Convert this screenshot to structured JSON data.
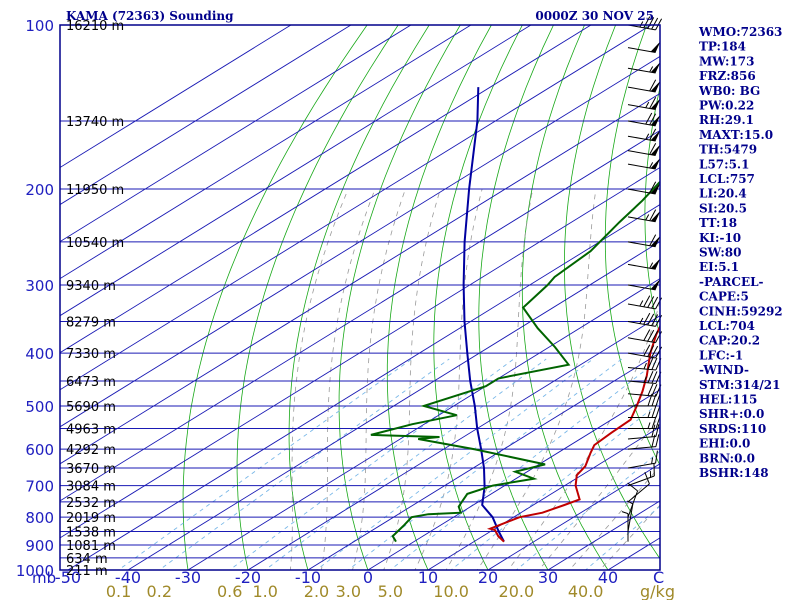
{
  "header": {
    "station": "KAMA (72363) Sounding",
    "time": "0000Z 30 NOV 25"
  },
  "indices": [
    "WMO:72363",
    "TP:184",
    "MW:173",
    "FRZ:856",
    "WB0: BG",
    "PW:0.22",
    "RH:29.1",
    "MAXT:15.0",
    "TH:5479",
    "L57:5.1",
    "LCL:757",
    "LI:20.4",
    "SI:20.5",
    "TT:18",
    "KI:-10",
    "SW:80",
    "EI:5.1",
    "-PARCEL-",
    "CAPE:5",
    "CINH:59292",
    "LCL:704",
    "CAP:20.2",
    "LFC:-1",
    "-WIND-",
    "STM:314/21",
    "HEL:115",
    "SHR+:0.0",
    "SRDS:110",
    "EHI:0.0",
    "BRN:0.0",
    "BSHR:148"
  ],
  "colors": {
    "frame": "#00008b",
    "isobar": "#1a1ab4",
    "isotherm": "#1a1ab4",
    "dry_adiabat": "#18a818",
    "moist_adiabat": "#9a9a9a",
    "mixing_ratio": "#7ab8e8",
    "temperature": "#c00000",
    "dewpoint": "#006400",
    "parcel": "#0000a0",
    "wind": "#000000"
  },
  "chart_data": {
    "type": "skew-t",
    "axis_labels": {
      "pressure_unit": "mb",
      "mixing_ratio_unit": "g/kg",
      "temperature_unit": "C"
    },
    "pressure_axis": {
      "scale": "log",
      "range_mb": [
        100,
        1000
      ],
      "ticks_mb": [
        100,
        200,
        300,
        400,
        500,
        600,
        700,
        800,
        900,
        1000
      ]
    },
    "temperature_axis": {
      "range_c": [
        -50,
        50
      ],
      "ticks_c": [
        -50,
        -40,
        -30,
        -20,
        -10,
        0,
        10,
        20,
        30,
        40
      ],
      "tick_labels": [
        "-50",
        "-40",
        "-30",
        "-20",
        "-10",
        "0",
        "10",
        "20",
        "30",
        "40"
      ]
    },
    "mixing_ratio_labels": [
      "0.1",
      "0.2",
      "0.6",
      "1.0",
      "2.0",
      "3.0",
      "5.0",
      "10.0",
      "20.0",
      "40.0"
    ],
    "height_levels": [
      {
        "p": 100,
        "label": "16210 m"
      },
      {
        "p": 150,
        "label": "13740 m"
      },
      {
        "p": 200,
        "label": "11950 m"
      },
      {
        "p": 250,
        "label": "10540 m"
      },
      {
        "p": 300,
        "label": "9340 m"
      },
      {
        "p": 350,
        "label": "8279 m"
      },
      {
        "p": 400,
        "label": "7330 m"
      },
      {
        "p": 450,
        "label": "6473 m"
      },
      {
        "p": 500,
        "label": "5690 m"
      },
      {
        "p": 550,
        "label": "4963 m"
      },
      {
        "p": 600,
        "label": "4292 m"
      },
      {
        "p": 650,
        "label": "3670 m"
      },
      {
        "p": 700,
        "label": "3084 m"
      },
      {
        "p": 750,
        "label": "2532 m"
      },
      {
        "p": 800,
        "label": "2019 m"
      },
      {
        "p": 850,
        "label": "1538 m"
      },
      {
        "p": 900,
        "label": "1081 m"
      },
      {
        "p": 950,
        "label": "634 m"
      },
      {
        "p": 1000,
        "label": "211 m"
      }
    ],
    "temperature_profile": [
      {
        "p": 887,
        "t": 15.0
      },
      {
        "p": 867,
        "t": 12.6
      },
      {
        "p": 845,
        "t": 10.4
      },
      {
        "p": 840,
        "t": 9.2
      },
      {
        "p": 800,
        "t": 11.0
      },
      {
        "p": 785,
        "t": 13.6
      },
      {
        "p": 760,
        "t": 15.2
      },
      {
        "p": 742,
        "t": 16.2
      },
      {
        "p": 700,
        "t": 11.8
      },
      {
        "p": 670,
        "t": 9.2
      },
      {
        "p": 645,
        "t": 8.2
      },
      {
        "p": 610,
        "t": 5.5
      },
      {
        "p": 590,
        "t": 4.0
      },
      {
        "p": 560,
        "t": 3.5
      },
      {
        "p": 530,
        "t": 3.2
      },
      {
        "p": 500,
        "t": 0.5
      },
      {
        "p": 470,
        "t": -2.5
      },
      {
        "p": 440,
        "t": -6.0
      },
      {
        "p": 400,
        "t": -11.5
      },
      {
        "p": 370,
        "t": -15.5
      },
      {
        "p": 350,
        "t": -18.0
      },
      {
        "p": 320,
        "t": -22.5
      },
      {
        "p": 300,
        "t": -26.5
      },
      {
        "p": 270,
        "t": -32.5
      },
      {
        "p": 250,
        "t": -38.0
      },
      {
        "p": 225,
        "t": -42.0
      },
      {
        "p": 212,
        "t": -41.5
      },
      {
        "p": 200,
        "t": -39.5
      },
      {
        "p": 184,
        "t": -40.0
      },
      {
        "p": 177,
        "t": -37.0
      },
      {
        "p": 168,
        "t": -37.5
      },
      {
        "p": 158,
        "t": -36.0
      },
      {
        "p": 148,
        "t": -35.5
      },
      {
        "p": 135,
        "t": -33.5
      },
      {
        "p": 120,
        "t": -30.5
      },
      {
        "p": 110,
        "t": -26.5
      },
      {
        "p": 104,
        "t": -26.0
      },
      {
        "p": 100,
        "t": -24.0
      }
    ],
    "dewpoint_profile": [
      {
        "p": 887,
        "td": -3.0
      },
      {
        "p": 867,
        "td": -5.0
      },
      {
        "p": 830,
        "td": -6.0
      },
      {
        "p": 800,
        "td": -7.0
      },
      {
        "p": 790,
        "td": -5.0
      },
      {
        "p": 785,
        "td": 0.0
      },
      {
        "p": 765,
        "td": -2.0
      },
      {
        "p": 745,
        "td": -3.0
      },
      {
        "p": 725,
        "td": -4.0
      },
      {
        "p": 700,
        "td": -2.0
      },
      {
        "p": 680,
        "td": 3.0
      },
      {
        "p": 660,
        "td": -2.0
      },
      {
        "p": 640,
        "td": 1.0
      },
      {
        "p": 600,
        "td": -15.0
      },
      {
        "p": 575,
        "td": -27.0
      },
      {
        "p": 570,
        "td": -24.0
      },
      {
        "p": 565,
        "td": -36.0
      },
      {
        "p": 540,
        "td": -32.0
      },
      {
        "p": 520,
        "td": -27.0
      },
      {
        "p": 500,
        "td": -35.0
      },
      {
        "p": 460,
        "td": -30.0
      },
      {
        "p": 445,
        "td": -30.0
      },
      {
        "p": 420,
        "td": -22.0
      },
      {
        "p": 390,
        "td": -29.0
      },
      {
        "p": 360,
        "td": -37.0
      },
      {
        "p": 330,
        "td": -45.0
      },
      {
        "p": 300,
        "td": -47.0
      },
      {
        "p": 290,
        "td": -48.0
      },
      {
        "p": 260,
        "td": -49.0
      },
      {
        "p": 230,
        "td": -52.0
      },
      {
        "p": 210,
        "td": -54.0
      },
      {
        "p": 195,
        "td": -56.0
      },
      {
        "p": 180,
        "td": -58.0
      },
      {
        "p": 160,
        "td": -62.0
      },
      {
        "p": 145,
        "td": -66.0
      },
      {
        "p": 120,
        "td": -70.0
      },
      {
        "p": 105,
        "td": -74.0
      },
      {
        "p": 100,
        "td": -76.0
      }
    ],
    "parcel_profile": [
      {
        "p": 887,
        "t": 15.0
      },
      {
        "p": 850,
        "t": 11.4
      },
      {
        "p": 800,
        "t": 6.5
      },
      {
        "p": 760,
        "t": 1.5
      },
      {
        "p": 704,
        "t": -3.0
      },
      {
        "p": 650,
        "t": -8.2
      },
      {
        "p": 600,
        "t": -13.8
      },
      {
        "p": 550,
        "t": -20.0
      },
      {
        "p": 500,
        "t": -26.5
      },
      {
        "p": 450,
        "t": -34.0
      },
      {
        "p": 400,
        "t": -42.0
      },
      {
        "p": 350,
        "t": -51.0
      },
      {
        "p": 300,
        "t": -61.0
      },
      {
        "p": 250,
        "t": -72.5
      },
      {
        "p": 200,
        "t": -86.0
      },
      {
        "p": 150,
        "t": -103.0
      },
      {
        "p": 130,
        "t": -112.0
      }
    ],
    "wind_profile": [
      {
        "p": 100,
        "dir": 280,
        "spd": 45
      },
      {
        "p": 110,
        "dir": 280,
        "spd": 50
      },
      {
        "p": 120,
        "dir": 280,
        "spd": 55
      },
      {
        "p": 130,
        "dir": 280,
        "spd": 60
      },
      {
        "p": 140,
        "dir": 280,
        "spd": 65
      },
      {
        "p": 150,
        "dir": 280,
        "spd": 70
      },
      {
        "p": 160,
        "dir": 280,
        "spd": 65
      },
      {
        "p": 170,
        "dir": 280,
        "spd": 60
      },
      {
        "p": 180,
        "dir": 280,
        "spd": 55
      },
      {
        "p": 200,
        "dir": 280,
        "spd": 60
      },
      {
        "p": 225,
        "dir": 280,
        "spd": 65
      },
      {
        "p": 250,
        "dir": 280,
        "spd": 60
      },
      {
        "p": 275,
        "dir": 280,
        "spd": 55
      },
      {
        "p": 300,
        "dir": 280,
        "spd": 50
      },
      {
        "p": 325,
        "dir": 280,
        "spd": 45
      },
      {
        "p": 350,
        "dir": 280,
        "spd": 45
      },
      {
        "p": 375,
        "dir": 280,
        "spd": 40
      },
      {
        "p": 400,
        "dir": 280,
        "spd": 40
      },
      {
        "p": 425,
        "dir": 275,
        "spd": 35
      },
      {
        "p": 450,
        "dir": 275,
        "spd": 35
      },
      {
        "p": 475,
        "dir": 275,
        "spd": 30
      },
      {
        "p": 500,
        "dir": 270,
        "spd": 30
      },
      {
        "p": 525,
        "dir": 270,
        "spd": 25
      },
      {
        "p": 550,
        "dir": 270,
        "spd": 25
      },
      {
        "p": 575,
        "dir": 265,
        "spd": 20
      },
      {
        "p": 600,
        "dir": 265,
        "spd": 20
      },
      {
        "p": 650,
        "dir": 260,
        "spd": 15
      },
      {
        "p": 700,
        "dir": 250,
        "spd": 15
      },
      {
        "p": 750,
        "dir": 230,
        "spd": 10
      },
      {
        "p": 800,
        "dir": 200,
        "spd": 10
      },
      {
        "p": 850,
        "dir": 190,
        "spd": 5
      },
      {
        "p": 887,
        "dir": 180,
        "spd": 5
      }
    ]
  }
}
